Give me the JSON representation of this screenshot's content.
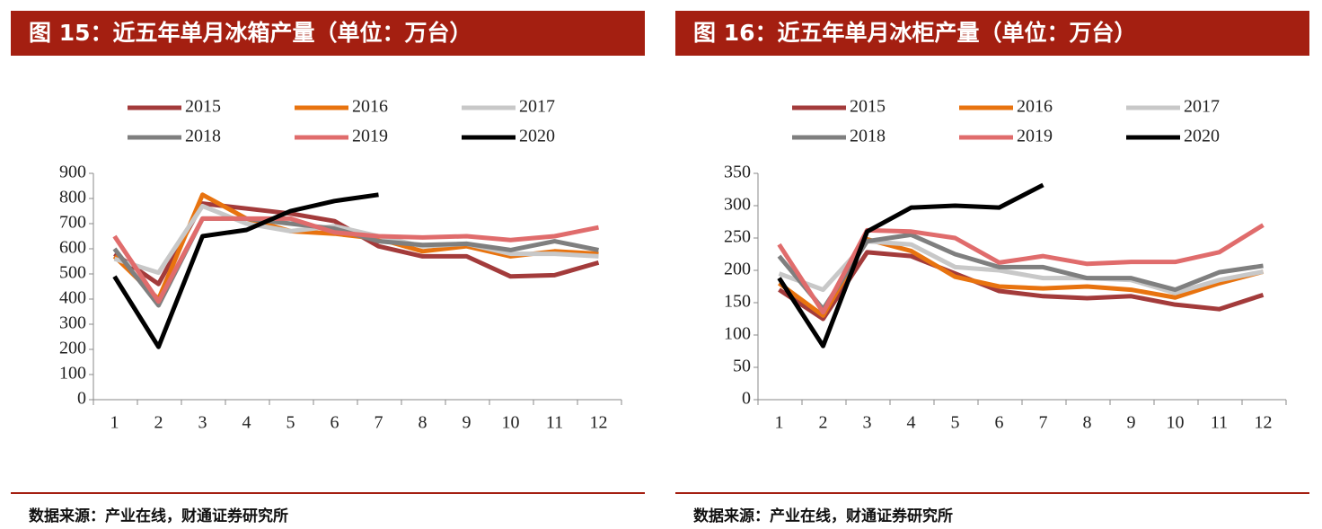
{
  "chart_data": [
    {
      "type": "line",
      "title": "图 15：近五年单月冰箱产量（单位：万台）",
      "source": "数据来源：产业在线，财通证券研究所",
      "categories": [
        "1",
        "2",
        "3",
        "4",
        "5",
        "6",
        "7",
        "8",
        "9",
        "10",
        "11",
        "12"
      ],
      "ylim": [
        0,
        900
      ],
      "yticks": [
        0,
        100,
        200,
        300,
        400,
        500,
        600,
        700,
        800,
        900
      ],
      "series": [
        {
          "name": "2015",
          "color": "#a33b3b",
          "values": [
            580,
            460,
            780,
            760,
            740,
            710,
            610,
            570,
            570,
            490,
            495,
            545
          ]
        },
        {
          "name": "2016",
          "color": "#e8730f",
          "values": [
            570,
            400,
            815,
            720,
            670,
            660,
            640,
            590,
            610,
            570,
            590,
            580
          ]
        },
        {
          "name": "2017",
          "color": "#c8c8c8",
          "values": [
            560,
            505,
            770,
            700,
            670,
            690,
            650,
            610,
            620,
            580,
            580,
            570
          ]
        },
        {
          "name": "2018",
          "color": "#7f7f7f",
          "values": [
            600,
            375,
            720,
            720,
            700,
            680,
            630,
            615,
            620,
            595,
            630,
            595
          ]
        },
        {
          "name": "2019",
          "color": "#e06c6c",
          "values": [
            650,
            390,
            720,
            720,
            720,
            665,
            650,
            645,
            650,
            635,
            650,
            685
          ]
        },
        {
          "name": "2020",
          "color": "#000000",
          "values": [
            490,
            210,
            650,
            675,
            750,
            790,
            815,
            null,
            null,
            null,
            null,
            null
          ]
        }
      ]
    },
    {
      "type": "line",
      "title": "图 16：近五年单月冰柜产量（单位：万台）",
      "source": "数据来源：产业在线，财通证券研究所",
      "categories": [
        "1",
        "2",
        "3",
        "4",
        "5",
        "6",
        "7",
        "8",
        "9",
        "10",
        "11",
        "12"
      ],
      "ylim": [
        0,
        350
      ],
      "yticks": [
        0,
        50,
        100,
        150,
        200,
        250,
        300,
        350
      ],
      "series": [
        {
          "name": "2015",
          "color": "#a33b3b",
          "values": [
            170,
            125,
            228,
            222,
            195,
            168,
            160,
            157,
            160,
            147,
            140,
            162
          ]
        },
        {
          "name": "2016",
          "color": "#e8730f",
          "values": [
            180,
            130,
            248,
            230,
            190,
            175,
            172,
            175,
            170,
            158,
            180,
            198
          ]
        },
        {
          "name": "2017",
          "color": "#c8c8c8",
          "values": [
            195,
            170,
            245,
            240,
            205,
            200,
            188,
            188,
            185,
            165,
            185,
            198
          ]
        },
        {
          "name": "2018",
          "color": "#7f7f7f",
          "values": [
            222,
            140,
            245,
            255,
            225,
            205,
            205,
            188,
            188,
            170,
            197,
            207
          ]
        },
        {
          "name": "2019",
          "color": "#e06c6c",
          "values": [
            240,
            135,
            262,
            260,
            250,
            212,
            222,
            210,
            213,
            213,
            228,
            270
          ]
        },
        {
          "name": "2020",
          "color": "#000000",
          "values": [
            188,
            83,
            260,
            297,
            300,
            297,
            332,
            null,
            null,
            null,
            null,
            null
          ]
        }
      ]
    }
  ]
}
